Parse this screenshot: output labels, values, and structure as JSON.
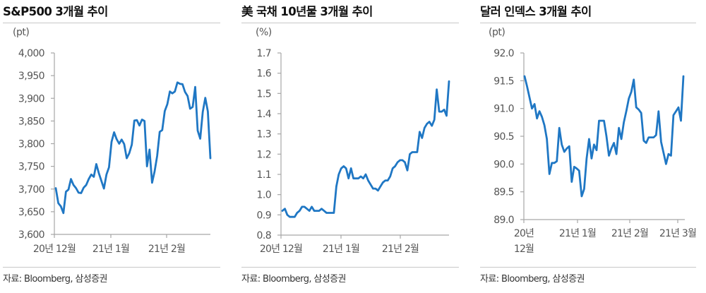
{
  "charts": [
    {
      "title": "S&P500 3개월 추이",
      "unit": "(pt)",
      "source": "자료: Bloomberg, 삼성증권",
      "y_ticks": [
        "4,000",
        "3,950",
        "3,900",
        "3,850",
        "3,800",
        "3,750",
        "3,700",
        "3,650",
        "3,600"
      ],
      "x_ticks": [
        "20년 12월",
        "21년 1월",
        "21년 2월"
      ]
    },
    {
      "title": "美 국채 10년물 3개월 추이",
      "unit": "(%)",
      "source": "자료: Bloomberg, 삼성증권",
      "y_ticks": [
        "1.7",
        "1.6",
        "1.5",
        "1.4",
        "1.3",
        "1.2",
        "1.1",
        "1.0",
        "0.9",
        "0.8"
      ],
      "x_ticks": [
        "20년 12월",
        "21년 1월",
        "21년 2월"
      ]
    },
    {
      "title": "달러 인덱스 3개월 추이",
      "unit": "(pt)",
      "source": "자료: Bloomberg, 삼성증권",
      "y_ticks": [
        "92.0",
        "91.5",
        "91.0",
        "90.5",
        "90.0",
        "89.5",
        "89.0"
      ],
      "x_ticks": [
        "20년",
        "12월",
        "21년 1월",
        "21년 2월",
        "21년 3월"
      ]
    }
  ],
  "colors": {
    "line": "#1f77c4",
    "axis": "#a6a6a6",
    "rule": "#c8c8c8"
  },
  "chart_data": [
    {
      "type": "line",
      "title": "S&P500 3개월 추이",
      "ylabel": "(pt)",
      "ylim": [
        3600,
        4000
      ],
      "x_tick_labels": [
        "20년 12월",
        "21년 1월",
        "21년 2월"
      ],
      "series": [
        {
          "name": "S&P500",
          "values": [
            3702,
            3669,
            3662,
            3647,
            3694,
            3699,
            3722,
            3709,
            3702,
            3692,
            3691,
            3703,
            3709,
            3722,
            3732,
            3727,
            3755,
            3735,
            3718,
            3701,
            3732,
            3748,
            3804,
            3825,
            3810,
            3800,
            3809,
            3799,
            3768,
            3779,
            3798,
            3851,
            3852,
            3840,
            3853,
            3850,
            3750,
            3787,
            3714,
            3739,
            3773,
            3826,
            3830,
            3872,
            3887,
            3915,
            3911,
            3915,
            3935,
            3932,
            3931,
            3914,
            3905,
            3877,
            3881,
            3925,
            3829,
            3811,
            3870,
            3901,
            3871,
            3768
          ]
        }
      ],
      "source": "자료: Bloomberg, 삼성증권"
    },
    {
      "type": "line",
      "title": "美 국채 10년물 3개월 추이",
      "ylabel": "(%)",
      "ylim": [
        0.8,
        1.7
      ],
      "x_tick_labels": [
        "20년 12월",
        "21년 1월",
        "21년 2월"
      ],
      "series": [
        {
          "name": "US 10Y Treasury",
          "values": [
            0.92,
            0.93,
            0.9,
            0.89,
            0.89,
            0.89,
            0.91,
            0.92,
            0.94,
            0.94,
            0.93,
            0.92,
            0.94,
            0.92,
            0.92,
            0.92,
            0.93,
            0.92,
            0.91,
            0.91,
            0.91,
            0.91,
            1.04,
            1.1,
            1.13,
            1.14,
            1.13,
            1.08,
            1.13,
            1.08,
            1.08,
            1.08,
            1.09,
            1.08,
            1.1,
            1.07,
            1.05,
            1.03,
            1.03,
            1.02,
            1.04,
            1.06,
            1.07,
            1.07,
            1.09,
            1.13,
            1.14,
            1.16,
            1.17,
            1.17,
            1.16,
            1.12,
            1.2,
            1.21,
            1.21,
            1.21,
            1.31,
            1.28,
            1.33,
            1.35,
            1.36,
            1.34,
            1.37,
            1.52,
            1.41,
            1.41,
            1.42,
            1.39,
            1.56
          ]
        }
      ],
      "source": "자료: Bloomberg, 삼성증권"
    },
    {
      "type": "line",
      "title": "달러 인덱스 3개월 추이",
      "ylabel": "(pt)",
      "ylim": [
        89.0,
        92.0
      ],
      "x_tick_labels": [
        "20년 12월",
        "21년 1월",
        "21년 2월",
        "21년 3월"
      ],
      "series": [
        {
          "name": "Dollar Index",
          "values": [
            91.58,
            91.4,
            91.2,
            91.0,
            91.08,
            90.82,
            90.95,
            90.85,
            90.7,
            90.45,
            89.82,
            90.02,
            90.02,
            90.05,
            90.65,
            90.35,
            90.22,
            90.28,
            90.32,
            89.68,
            89.95,
            89.92,
            89.88,
            89.42,
            89.55,
            90.1,
            90.45,
            90.1,
            90.35,
            90.25,
            90.78,
            90.78,
            90.78,
            90.5,
            90.15,
            90.28,
            90.38,
            90.18,
            90.65,
            90.45,
            90.75,
            90.95,
            91.18,
            91.3,
            91.52,
            91.02,
            90.98,
            90.92,
            90.42,
            90.38,
            90.48,
            90.48,
            90.48,
            90.52,
            90.95,
            90.4,
            90.2,
            90.0,
            90.18,
            90.15,
            90.88,
            90.95,
            91.02,
            90.78,
            91.58
          ]
        }
      ],
      "source": "자료: Bloomberg, 삼성증권"
    }
  ]
}
